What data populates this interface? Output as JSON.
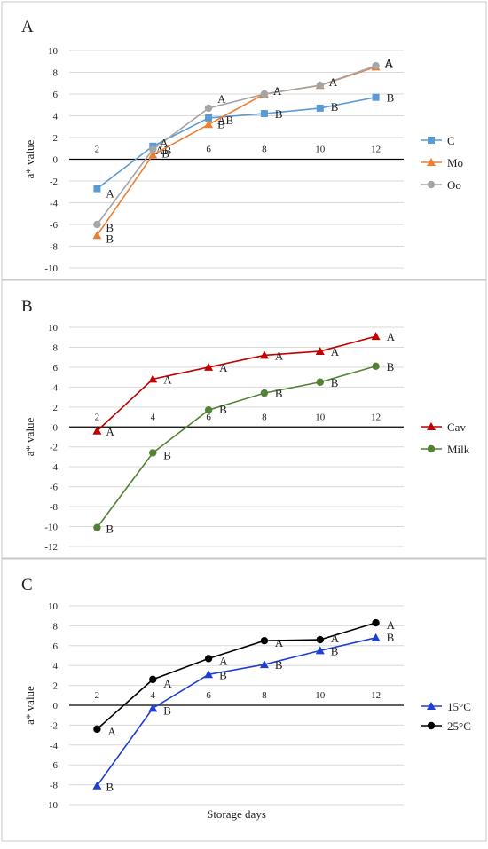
{
  "chart_data": [
    {
      "panel_label": "A",
      "type": "line",
      "ylabel": "a* value",
      "xlabel": "",
      "ylim": [
        -10,
        10
      ],
      "yticks": [
        -10,
        -8,
        -6,
        -4,
        -2,
        0,
        2,
        4,
        6,
        8,
        10
      ],
      "categories": [
        "2",
        "4",
        "6",
        "8",
        "10",
        "12"
      ],
      "legend_position": "right",
      "grid": true,
      "series": [
        {
          "name": "C",
          "color": "#5b9bd5",
          "marker": "square",
          "values": [
            -2.7,
            1.2,
            3.8,
            4.2,
            4.7,
            5.7
          ],
          "labels": [
            "A",
            "AB",
            "AB",
            "B",
            "B",
            "B"
          ]
        },
        {
          "name": "Mo",
          "color": "#ed7d31",
          "marker": "triangle",
          "values": [
            -7.0,
            0.4,
            3.2,
            6.0,
            6.8,
            8.5
          ],
          "labels": [
            "B",
            "B",
            "B",
            "A",
            "A",
            "A"
          ]
        },
        {
          "name": "Oo",
          "color": "#a5a5a5",
          "marker": "circle",
          "values": [
            -6.0,
            0.9,
            4.7,
            6.0,
            6.8,
            8.6
          ],
          "labels": [
            "B",
            "A",
            "A",
            "A",
            "A",
            "A"
          ]
        }
      ]
    },
    {
      "panel_label": "B",
      "type": "line",
      "ylabel": "a* value",
      "xlabel": "",
      "ylim": [
        -12,
        10
      ],
      "yticks": [
        -12,
        -10,
        -8,
        -6,
        -4,
        -2,
        0,
        2,
        4,
        6,
        8,
        10
      ],
      "categories": [
        "2",
        "4",
        "6",
        "8",
        "10",
        "12"
      ],
      "legend_position": "right",
      "grid": true,
      "series": [
        {
          "name": "Cav",
          "color": "#c00000",
          "marker": "triangle",
          "values": [
            -0.4,
            4.8,
            6.0,
            7.2,
            7.6,
            9.1
          ],
          "labels": [
            "A",
            "A",
            "A",
            "A",
            "A",
            "A"
          ]
        },
        {
          "name": "Milk",
          "color": "#548235",
          "marker": "circle",
          "values": [
            -10.1,
            -2.6,
            1.7,
            3.4,
            4.5,
            6.1
          ],
          "labels": [
            "B",
            "B",
            "B",
            "B",
            "B",
            "B"
          ]
        }
      ]
    },
    {
      "panel_label": "C",
      "type": "line",
      "ylabel": "a* value",
      "xlabel": "Storage days",
      "ylim": [
        -10,
        10
      ],
      "yticks": [
        -10,
        -8,
        -6,
        -4,
        -2,
        0,
        2,
        4,
        6,
        8,
        10
      ],
      "categories": [
        "2",
        "4",
        "6",
        "8",
        "10",
        "12"
      ],
      "legend_position": "right",
      "grid": true,
      "series": [
        {
          "name": "15°C",
          "color": "#1f3fd1",
          "marker": "triangle",
          "values": [
            -8.1,
            -0.3,
            3.1,
            4.1,
            5.5,
            6.8
          ],
          "labels": [
            "B",
            "B",
            "B",
            "B",
            "B",
            "B"
          ]
        },
        {
          "name": "25°C",
          "color": "#000000",
          "marker": "circle",
          "values": [
            -2.4,
            2.6,
            4.7,
            6.5,
            6.6,
            8.3
          ],
          "labels": [
            "A",
            "A",
            "A",
            "A",
            "A",
            "A"
          ]
        }
      ]
    }
  ]
}
